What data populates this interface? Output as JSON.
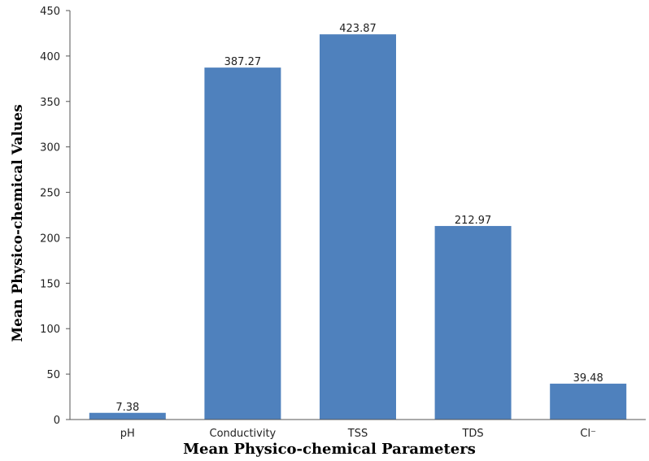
{
  "chart_data": {
    "type": "bar",
    "title": "",
    "xlabel": "Mean Physico-chemical Parameters",
    "ylabel": "Mean Physico-chemical Values",
    "categories": [
      "pH",
      "Conductivity",
      "TSS",
      "TDS",
      "Cl⁻"
    ],
    "values": [
      7.38,
      387.27,
      423.87,
      212.97,
      39.48
    ],
    "data_labels": [
      "7.38",
      "387.27",
      "423.87",
      "212.97",
      "39.48"
    ],
    "ylim": [
      0,
      450
    ],
    "yticks": [
      0,
      50,
      100,
      150,
      200,
      250,
      300,
      350,
      400,
      450
    ],
    "grid": false,
    "legend": "none",
    "bar_color": "#4F81BD"
  }
}
